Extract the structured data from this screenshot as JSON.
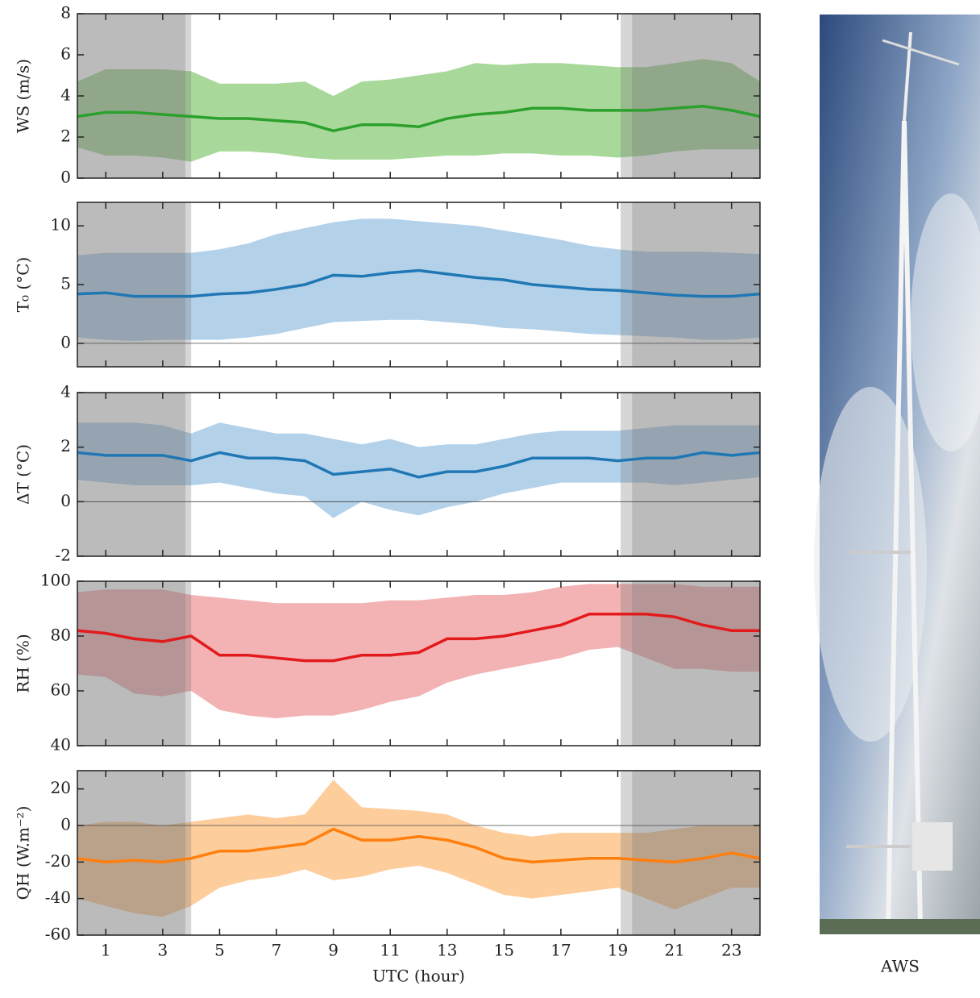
{
  "chart_data": [
    {
      "type": "line",
      "ylabel": "WS (m/s)",
      "ylim": [
        0,
        8
      ],
      "yticks": [
        0,
        2,
        4,
        6,
        8
      ],
      "xlim": [
        0,
        24
      ],
      "xticks": [
        1,
        3,
        5,
        7,
        9,
        11,
        13,
        15,
        17,
        19,
        21,
        23
      ],
      "x": [
        0,
        1,
        2,
        3,
        4,
        5,
        6,
        7,
        8,
        9,
        10,
        11,
        12,
        13,
        14,
        15,
        16,
        17,
        18,
        19,
        20,
        21,
        22,
        23,
        24
      ],
      "series": [
        {
          "color": "#2ca02c",
          "band_color": "#a8d99a",
          "values": [
            3.0,
            3.2,
            3.2,
            3.1,
            3.0,
            2.9,
            2.9,
            2.8,
            2.7,
            2.3,
            2.6,
            2.6,
            2.5,
            2.9,
            3.1,
            3.2,
            3.4,
            3.4,
            3.3,
            3.3,
            3.3,
            3.4,
            3.5,
            3.3,
            3.0
          ],
          "upper": [
            4.7,
            5.3,
            5.3,
            5.3,
            5.2,
            4.6,
            4.6,
            4.6,
            4.7,
            4.0,
            4.7,
            4.8,
            5.0,
            5.2,
            5.6,
            5.5,
            5.6,
            5.6,
            5.5,
            5.4,
            5.4,
            5.6,
            5.8,
            5.6,
            4.7
          ],
          "lower": [
            1.5,
            1.1,
            1.1,
            1.0,
            0.8,
            1.3,
            1.3,
            1.2,
            1.0,
            0.9,
            0.9,
            0.9,
            1.0,
            1.1,
            1.1,
            1.2,
            1.2,
            1.1,
            1.1,
            1.0,
            1.1,
            1.3,
            1.4,
            1.4,
            1.4
          ]
        }
      ]
    },
    {
      "type": "line",
      "ylabel": "T₀ (°C)",
      "ylim": [
        -2,
        12
      ],
      "yticks": [
        0,
        5,
        10
      ],
      "hline": 0,
      "xlim": [
        0,
        24
      ],
      "xticks": [
        1,
        3,
        5,
        7,
        9,
        11,
        13,
        15,
        17,
        19,
        21,
        23
      ],
      "x": [
        0,
        1,
        2,
        3,
        4,
        5,
        6,
        7,
        8,
        9,
        10,
        11,
        12,
        13,
        14,
        15,
        16,
        17,
        18,
        19,
        20,
        21,
        22,
        23,
        24
      ],
      "series": [
        {
          "color": "#1f77b4",
          "band_color": "#b4d1ea",
          "values": [
            4.2,
            4.3,
            4.0,
            4.0,
            4.0,
            4.2,
            4.3,
            4.6,
            5.0,
            5.8,
            5.7,
            6.0,
            6.2,
            5.9,
            5.6,
            5.4,
            5.0,
            4.8,
            4.6,
            4.5,
            4.3,
            4.1,
            4.0,
            4.0,
            4.2
          ],
          "upper": [
            7.5,
            7.7,
            7.7,
            7.7,
            7.7,
            8.0,
            8.5,
            9.3,
            9.8,
            10.3,
            10.6,
            10.6,
            10.4,
            10.2,
            10.0,
            9.6,
            9.2,
            8.8,
            8.3,
            8.0,
            7.8,
            7.8,
            7.8,
            7.7,
            7.6
          ],
          "lower": [
            0.5,
            0.3,
            0.2,
            0.3,
            0.3,
            0.3,
            0.5,
            0.8,
            1.3,
            1.8,
            1.9,
            2.0,
            2.0,
            1.8,
            1.6,
            1.3,
            1.2,
            1.0,
            0.8,
            0.7,
            0.6,
            0.5,
            0.3,
            0.3,
            0.5
          ]
        }
      ]
    },
    {
      "type": "line",
      "ylabel": "ΔT (°C)",
      "ylim": [
        -2,
        4
      ],
      "yticks": [
        -2,
        0,
        2,
        4
      ],
      "hline": 0,
      "xlim": [
        0,
        24
      ],
      "xticks": [
        1,
        3,
        5,
        7,
        9,
        11,
        13,
        15,
        17,
        19,
        21,
        23
      ],
      "x": [
        0,
        1,
        2,
        3,
        4,
        5,
        6,
        7,
        8,
        9,
        10,
        11,
        12,
        13,
        14,
        15,
        16,
        17,
        18,
        19,
        20,
        21,
        22,
        23,
        24
      ],
      "series": [
        {
          "color": "#1f77b4",
          "band_color": "#b4d1ea",
          "values": [
            1.8,
            1.7,
            1.7,
            1.7,
            1.5,
            1.8,
            1.6,
            1.6,
            1.5,
            1.0,
            1.1,
            1.2,
            0.9,
            1.1,
            1.1,
            1.3,
            1.6,
            1.6,
            1.6,
            1.5,
            1.6,
            1.6,
            1.8,
            1.7,
            1.8
          ],
          "upper": [
            2.9,
            2.9,
            2.9,
            2.8,
            2.5,
            2.9,
            2.7,
            2.5,
            2.5,
            2.3,
            2.1,
            2.3,
            2.0,
            2.1,
            2.1,
            2.3,
            2.5,
            2.6,
            2.6,
            2.6,
            2.7,
            2.8,
            2.8,
            2.8,
            2.8
          ],
          "lower": [
            0.8,
            0.7,
            0.6,
            0.6,
            0.6,
            0.7,
            0.5,
            0.3,
            0.2,
            -0.6,
            0.0,
            -0.3,
            -0.5,
            -0.2,
            0.0,
            0.3,
            0.5,
            0.7,
            0.7,
            0.7,
            0.7,
            0.6,
            0.7,
            0.8,
            0.9
          ]
        }
      ]
    },
    {
      "type": "line",
      "ylabel": "RH (%)",
      "ylim": [
        40,
        100
      ],
      "yticks": [
        40,
        60,
        80,
        100
      ],
      "xlim": [
        0,
        24
      ],
      "xticks": [
        1,
        3,
        5,
        7,
        9,
        11,
        13,
        15,
        17,
        19,
        21,
        23
      ],
      "x": [
        0,
        1,
        2,
        3,
        4,
        5,
        6,
        7,
        8,
        9,
        10,
        11,
        12,
        13,
        14,
        15,
        16,
        17,
        18,
        19,
        20,
        21,
        22,
        23,
        24
      ],
      "series": [
        {
          "color": "#e31a1c",
          "band_color": "#f3b2b4",
          "values": [
            82,
            81,
            79,
            78,
            80,
            73,
            73,
            72,
            71,
            71,
            73,
            73,
            74,
            79,
            79,
            80,
            82,
            84,
            88,
            88,
            88,
            87,
            84,
            82,
            82
          ],
          "upper": [
            96,
            97,
            97,
            97,
            95,
            94,
            93,
            92,
            92,
            92,
            92,
            93,
            93,
            94,
            95,
            95,
            96,
            98,
            99,
            99,
            99,
            99,
            98,
            98,
            98
          ],
          "lower": [
            66,
            65,
            59,
            58,
            60,
            53,
            51,
            50,
            51,
            51,
            53,
            56,
            58,
            63,
            66,
            68,
            70,
            72,
            75,
            76,
            72,
            68,
            68,
            67,
            67
          ]
        }
      ]
    },
    {
      "type": "line",
      "ylabel": "QH (W.m⁻²)",
      "ylim": [
        -60,
        30
      ],
      "yticks": [
        -60,
        -40,
        -20,
        0,
        20
      ],
      "hline": 0,
      "xlim": [
        0,
        24
      ],
      "xticks": [
        1,
        3,
        5,
        7,
        9,
        11,
        13,
        15,
        17,
        19,
        21,
        23
      ],
      "xlabel": "UTC (hour)",
      "x": [
        0,
        1,
        2,
        3,
        4,
        5,
        6,
        7,
        8,
        9,
        10,
        11,
        12,
        13,
        14,
        15,
        16,
        17,
        18,
        19,
        20,
        21,
        22,
        23,
        24
      ],
      "series": [
        {
          "color": "#ff7f0e",
          "band_color": "#fdcd9c",
          "values": [
            -18,
            -20,
            -19,
            -20,
            -18,
            -14,
            -14,
            -12,
            -10,
            -2,
            -8,
            -8,
            -6,
            -8,
            -12,
            -18,
            -20,
            -19,
            -18,
            -18,
            -19,
            -20,
            -18,
            -15,
            -18
          ],
          "upper": [
            0,
            2,
            2,
            0,
            2,
            4,
            6,
            4,
            6,
            25,
            10,
            9,
            8,
            6,
            0,
            -4,
            -6,
            -4,
            -4,
            -4,
            -4,
            -2,
            0,
            0,
            0
          ],
          "lower": [
            -40,
            -44,
            -48,
            -50,
            -44,
            -34,
            -30,
            -28,
            -24,
            -30,
            -28,
            -24,
            -22,
            -26,
            -32,
            -38,
            -40,
            -38,
            -36,
            -34,
            -40,
            -46,
            -40,
            -34,
            -34
          ]
        }
      ]
    }
  ],
  "shading": [
    {
      "from": 0,
      "to": 3.8,
      "opacity": 0.5
    },
    {
      "from": 3.8,
      "to": 4,
      "opacity": 0.3
    },
    {
      "from": 19.1,
      "to": 19.5,
      "opacity": 0.3
    },
    {
      "from": 19.5,
      "to": 24,
      "opacity": 0.5
    }
  ],
  "photo_caption": "AWS"
}
